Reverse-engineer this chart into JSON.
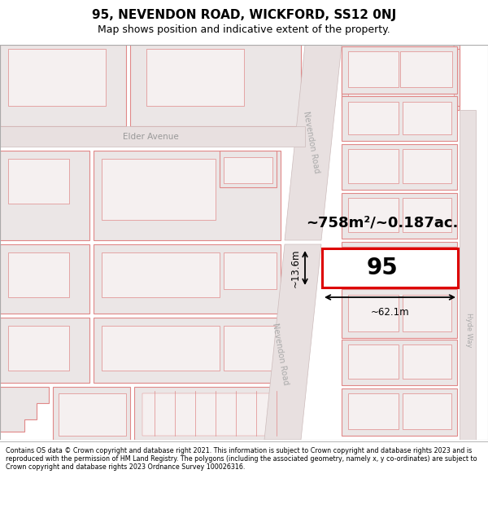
{
  "title_line1": "95, NEVENDON ROAD, WICKFORD, SS12 0NJ",
  "title_line2": "Map shows position and indicative extent of the property.",
  "footer_text": "Contains OS data © Crown copyright and database right 2021. This information is subject to Crown copyright and database rights 2023 and is reproduced with the permission of HM Land Registry. The polygons (including the associated geometry, namely x, y co-ordinates) are subject to Crown copyright and database rights 2023 Ordnance Survey 100026316.",
  "map_bg": "#f7f4f4",
  "building_fill": "#ebe6e6",
  "building_edge": "#e08888",
  "inner_fill": "#f5f0f0",
  "road_fill": "#e8e0e0",
  "road_edge": "#ccbbbb",
  "highlight_fill": "#ffffff",
  "highlight_edge": "#dd0000",
  "highlight_lw": 2.2,
  "area_label": "~758m²/~0.187ac.",
  "width_label": "~62.1m",
  "height_label": "~13.6m",
  "property_number": "95",
  "street_label_upper": "Nevendon Road",
  "street_label_lower": "Nevendon Road",
  "side_street": "Elder Avenue",
  "right_street": "Hyde Way",
  "title_fontsize": 11,
  "subtitle_fontsize": 9,
  "footer_fontsize": 5.8
}
